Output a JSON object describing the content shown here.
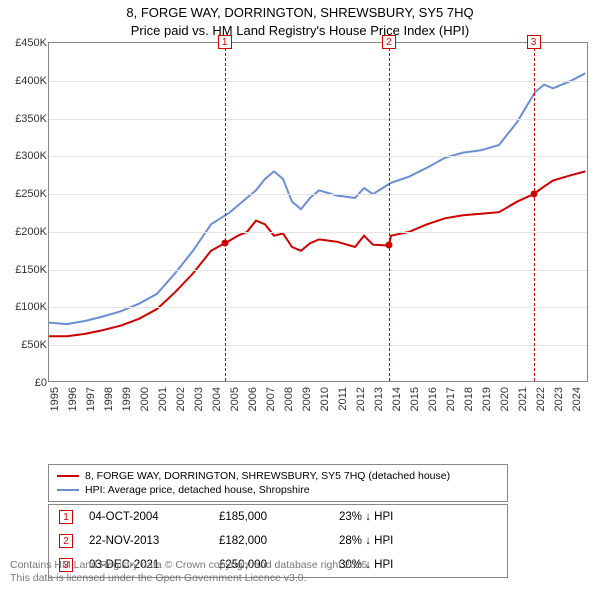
{
  "title_line1": "8, FORGE WAY, DORRINGTON, SHREWSBURY, SY5 7HQ",
  "title_line2": "Price paid vs. HM Land Registry's House Price Index (HPI)",
  "chart": {
    "type": "line",
    "background_color": "#ffffff",
    "grid_color": "#e4e4e4",
    "border_color": "#888888",
    "x_range": [
      1995,
      2025
    ],
    "y_range": [
      0,
      450000
    ],
    "y_ticks": [
      0,
      50000,
      100000,
      150000,
      200000,
      250000,
      300000,
      350000,
      400000,
      450000
    ],
    "y_tick_labels": [
      "£0",
      "£50K",
      "£100K",
      "£150K",
      "£200K",
      "£250K",
      "£300K",
      "£350K",
      "£400K",
      "£450K"
    ],
    "x_ticks": [
      1995,
      1996,
      1997,
      1998,
      1999,
      2000,
      2001,
      2002,
      2003,
      2004,
      2005,
      2006,
      2007,
      2008,
      2009,
      2010,
      2011,
      2012,
      2013,
      2014,
      2015,
      2016,
      2017,
      2018,
      2019,
      2020,
      2021,
      2022,
      2023,
      2024
    ],
    "label_fontsize": 11,
    "line_width": 2,
    "series": [
      {
        "name": "price_paid",
        "color": "#cc0000",
        "points": [
          [
            1995,
            62000
          ],
          [
            1996,
            62000
          ],
          [
            1997,
            65000
          ],
          [
            1998,
            70000
          ],
          [
            1999,
            76000
          ],
          [
            2000,
            85000
          ],
          [
            2001,
            98000
          ],
          [
            2002,
            120000
          ],
          [
            2003,
            145000
          ],
          [
            2004,
            175000
          ],
          [
            2004.76,
            185000
          ],
          [
            2005,
            188000
          ],
          [
            2005.5,
            195000
          ],
          [
            2006,
            200000
          ],
          [
            2006.5,
            215000
          ],
          [
            2007,
            210000
          ],
          [
            2007.5,
            195000
          ],
          [
            2008,
            198000
          ],
          [
            2008.5,
            180000
          ],
          [
            2009,
            175000
          ],
          [
            2009.5,
            185000
          ],
          [
            2010,
            190000
          ],
          [
            2011,
            187000
          ],
          [
            2012,
            180000
          ],
          [
            2012.5,
            195000
          ],
          [
            2013,
            183000
          ],
          [
            2013.89,
            182000
          ],
          [
            2014,
            195000
          ],
          [
            2015,
            200000
          ],
          [
            2016,
            210000
          ],
          [
            2017,
            218000
          ],
          [
            2018,
            222000
          ],
          [
            2019,
            224000
          ],
          [
            2020,
            226000
          ],
          [
            2021,
            240000
          ],
          [
            2021.92,
            250000
          ],
          [
            2022.5,
            260000
          ],
          [
            2023,
            268000
          ],
          [
            2024,
            275000
          ],
          [
            2024.8,
            280000
          ]
        ]
      },
      {
        "name": "hpi",
        "color": "#6a8fd0",
        "points": [
          [
            1995,
            80000
          ],
          [
            1996,
            78000
          ],
          [
            1997,
            82000
          ],
          [
            1998,
            88000
          ],
          [
            1999,
            95000
          ],
          [
            2000,
            105000
          ],
          [
            2001,
            118000
          ],
          [
            2002,
            145000
          ],
          [
            2003,
            175000
          ],
          [
            2004,
            210000
          ],
          [
            2005,
            225000
          ],
          [
            2006,
            245000
          ],
          [
            2006.5,
            255000
          ],
          [
            2007,
            270000
          ],
          [
            2007.5,
            280000
          ],
          [
            2008,
            270000
          ],
          [
            2008.5,
            240000
          ],
          [
            2009,
            230000
          ],
          [
            2009.5,
            245000
          ],
          [
            2010,
            255000
          ],
          [
            2011,
            248000
          ],
          [
            2012,
            245000
          ],
          [
            2012.5,
            258000
          ],
          [
            2013,
            250000
          ],
          [
            2014,
            265000
          ],
          [
            2015,
            273000
          ],
          [
            2016,
            285000
          ],
          [
            2017,
            298000
          ],
          [
            2018,
            305000
          ],
          [
            2019,
            308000
          ],
          [
            2020,
            315000
          ],
          [
            2021,
            345000
          ],
          [
            2022,
            385000
          ],
          [
            2022.5,
            395000
          ],
          [
            2023,
            390000
          ],
          [
            2024,
            400000
          ],
          [
            2024.8,
            410000
          ]
        ]
      }
    ],
    "sale_markers": [
      {
        "n": "1",
        "x": 2004.76,
        "y": 185000,
        "color": "#cc0000"
      },
      {
        "n": "2",
        "x": 2013.89,
        "y": 182000,
        "color": "#cc0000"
      },
      {
        "n": "3",
        "x": 2021.92,
        "y": 250000,
        "color": "#cc0000"
      }
    ]
  },
  "legend": {
    "items": [
      {
        "color": "#cc0000",
        "width": 2,
        "label": "8, FORGE WAY, DORRINGTON, SHREWSBURY, SY5 7HQ (detached house)"
      },
      {
        "color": "#6a8fd0",
        "width": 2,
        "label": "HPI: Average price, detached house, Shropshire"
      }
    ]
  },
  "sales": [
    {
      "n": "1",
      "date": "04-OCT-2004",
      "price": "£185,000",
      "diff": "23% ↓ HPI"
    },
    {
      "n": "2",
      "date": "22-NOV-2013",
      "price": "£182,000",
      "diff": "28% ↓ HPI"
    },
    {
      "n": "3",
      "date": "03-DEC-2021",
      "price": "£250,000",
      "diff": "30% ↓ HPI"
    }
  ],
  "footnote_line1": "Contains HM Land Registry data © Crown copyright and database right 2025.",
  "footnote_line2": "This data is licensed under the Open Government Licence v3.0.",
  "colors": {
    "marker_border": "#cc0000",
    "footnote_text": "#777777"
  }
}
